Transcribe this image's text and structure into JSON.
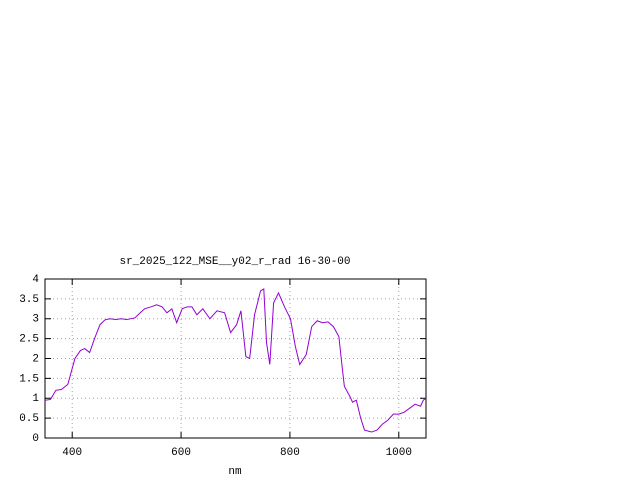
{
  "chart_data": {
    "type": "line",
    "title": "sr_2025_122_MSE__y02_r_rad 16-30-00",
    "x_label": "nm",
    "x": [
      350,
      360,
      370,
      380,
      392,
      405,
      415,
      423,
      432,
      441,
      451,
      460,
      469,
      480,
      490,
      500,
      515,
      525,
      533,
      545,
      555,
      565,
      574,
      583,
      592,
      602,
      611,
      620,
      629,
      640,
      653,
      666,
      680,
      691,
      702,
      710,
      719,
      726,
      735,
      746,
      752,
      757,
      763,
      770,
      779,
      790,
      801,
      810,
      818,
      830,
      840,
      850,
      860,
      870,
      880,
      890,
      895,
      900,
      910,
      915,
      922,
      930,
      937,
      950,
      960,
      970,
      980,
      990,
      1000,
      1010,
      1020,
      1030,
      1040,
      1045,
      1050
    ],
    "series": [
      {
        "name": "sr_2025_122_MSE__y02_r_rad",
        "color": "#9400d3",
        "values": [
          0.95,
          0.97,
          1.2,
          1.22,
          1.35,
          2.0,
          2.2,
          2.25,
          2.15,
          2.5,
          2.85,
          2.97,
          3.0,
          2.98,
          3.0,
          2.98,
          3.02,
          3.15,
          3.25,
          3.3,
          3.35,
          3.3,
          3.15,
          3.25,
          2.9,
          3.25,
          3.3,
          3.3,
          3.1,
          3.25,
          3.0,
          3.2,
          3.15,
          2.65,
          2.85,
          3.2,
          2.05,
          2.0,
          3.1,
          3.7,
          3.75,
          2.4,
          1.85,
          3.4,
          3.65,
          3.3,
          3.0,
          2.3,
          1.85,
          2.1,
          2.8,
          2.95,
          2.9,
          2.92,
          2.8,
          2.55,
          1.9,
          1.3,
          1.05,
          0.9,
          0.95,
          0.5,
          0.2,
          0.15,
          0.2,
          0.35,
          0.45,
          0.6,
          0.6,
          0.65,
          0.75,
          0.85,
          0.8,
          0.95,
          1.0
        ]
      }
    ],
    "xlim": [
      350,
      1050
    ],
    "ylim": [
      0,
      4
    ],
    "xticks": [
      400,
      600,
      800,
      1000
    ],
    "yticks": [
      0,
      0.5,
      1,
      1.5,
      2,
      2.5,
      3,
      3.5,
      4
    ],
    "grid": true
  }
}
